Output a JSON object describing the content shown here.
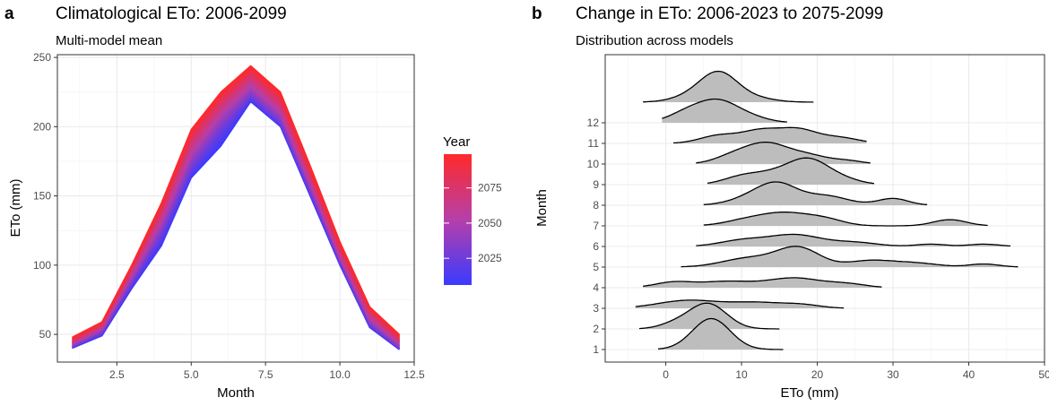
{
  "chart_data": [
    {
      "panel": "a",
      "type": "line",
      "title": "Climatological ETo: 2006-2099",
      "subtitle": "Multi-model mean",
      "xlabel": "Month",
      "ylabel": "ETo (mm)",
      "xlim": [
        0.5,
        12.5
      ],
      "ylim": [
        30,
        252
      ],
      "xticks": [
        2.5,
        5.0,
        7.5,
        10.0,
        12.5
      ],
      "xtick_labels": [
        "2.5",
        "5.0",
        "7.5",
        "10.0",
        "12.5"
      ],
      "yticks": [
        50,
        100,
        150,
        200,
        250
      ],
      "ytick_labels": [
        "50",
        "100",
        "150",
        "200",
        "250"
      ],
      "x": [
        1,
        2,
        3,
        4,
        5,
        6,
        7,
        8,
        9,
        10,
        11,
        12
      ],
      "series": [
        {
          "name": "2006",
          "values": [
            40,
            49,
            83,
            114,
            163,
            186,
            218,
            200,
            150,
            100,
            55,
            39
          ]
        },
        {
          "name": "2025",
          "values": [
            41,
            51,
            87,
            122,
            170,
            198,
            222,
            203,
            153,
            102,
            57,
            40
          ]
        },
        {
          "name": "2050",
          "values": [
            43,
            54,
            92,
            131,
            180,
            208,
            229,
            210,
            159,
            106,
            61,
            43
          ]
        },
        {
          "name": "2075",
          "values": [
            45,
            57,
            97,
            139,
            190,
            217,
            237,
            217,
            165,
            111,
            66,
            46
          ]
        },
        {
          "name": "2099",
          "values": [
            48,
            59,
            100,
            145,
            198,
            225,
            244,
            225,
            172,
            117,
            70,
            50
          ]
        }
      ],
      "legend": {
        "title": "Year",
        "labels": [
          "2075",
          "2050",
          "2025"
        ],
        "low_color": "#3b3bff",
        "mid_color": "#b63fa9",
        "high_color": "#ff2a2a",
        "year_range": [
          2006,
          2099
        ]
      }
    },
    {
      "panel": "b",
      "type": "ridgeline",
      "title": "Change in ETo: 2006-2023 to 2075-2099",
      "subtitle": "Distribution across models",
      "xlabel": "ETo (mm)",
      "ylabel": "Month",
      "xlim": [
        -8,
        50
      ],
      "xticks": [
        0,
        10,
        20,
        30,
        40,
        50
      ],
      "xtick_labels": [
        "0",
        "10",
        "20",
        "30",
        "40",
        "50"
      ],
      "categories": [
        "1",
        "2",
        "3",
        "4",
        "5",
        "6",
        "7",
        "8",
        "9",
        "10",
        "11",
        "12"
      ],
      "fill_color": "#bdbdbd",
      "ridges": [
        {
          "month": "1",
          "range": [
            -1,
            15.5
          ],
          "components": [
            [
              6,
              2.5,
              1.0
            ]
          ]
        },
        {
          "month": "2",
          "range": [
            -3.5,
            15
          ],
          "components": [
            [
              5.5,
              2.5,
              0.9
            ],
            [
              1,
              2,
              0.15
            ]
          ]
        },
        {
          "month": "3",
          "range": [
            -4,
            23.5
          ],
          "components": [
            [
              3,
              4,
              0.5
            ],
            [
              12,
              3.5,
              0.35
            ],
            [
              18,
              2.5,
              0.2
            ]
          ]
        },
        {
          "month": "4",
          "range": [
            -3,
            28.5
          ],
          "components": [
            [
              1,
              2.5,
              0.3
            ],
            [
              8,
              3.5,
              0.35
            ],
            [
              17,
              3.5,
              0.55
            ],
            [
              24,
              2.5,
              0.2
            ]
          ]
        },
        {
          "month": "5",
          "range": [
            2,
            46.5
          ],
          "components": [
            [
              11,
              3.5,
              0.35
            ],
            [
              17.5,
              2.8,
              0.75
            ],
            [
              27,
              3,
              0.25
            ],
            [
              33,
              3,
              0.15
            ],
            [
              42,
              2,
              0.12
            ]
          ]
        },
        {
          "month": "6",
          "range": [
            4,
            45.5
          ],
          "components": [
            [
              10,
              3,
              0.3
            ],
            [
              17,
              3.5,
              0.6
            ],
            [
              25,
              3,
              0.2
            ],
            [
              35,
              2,
              0.12
            ],
            [
              42,
              2,
              0.12
            ]
          ]
        },
        {
          "month": "7",
          "range": [
            5,
            42.5
          ],
          "components": [
            [
              11,
              3,
              0.3
            ],
            [
              16,
              3,
              0.55
            ],
            [
              21,
              2.5,
              0.3
            ],
            [
              37.5,
              2.2,
              0.3
            ]
          ]
        },
        {
          "month": "8",
          "range": [
            5,
            34.5
          ],
          "components": [
            [
              12,
              3,
              0.35
            ],
            [
              15,
              2.5,
              0.6
            ],
            [
              21,
              3,
              0.35
            ],
            [
              30,
              2,
              0.25
            ]
          ]
        },
        {
          "month": "9",
          "range": [
            5.5,
            27.5
          ],
          "components": [
            [
              10,
              2.5,
              0.25
            ],
            [
              15,
              3,
              0.4
            ],
            [
              19,
              2.5,
              0.7
            ],
            [
              23,
              2.5,
              0.2
            ]
          ]
        },
        {
          "month": "10",
          "range": [
            4,
            27
          ],
          "components": [
            [
              9,
              2.5,
              0.3
            ],
            [
              13.5,
              2.8,
              0.75
            ],
            [
              19,
              2.5,
              0.3
            ],
            [
              24,
              2,
              0.12
            ]
          ]
        },
        {
          "month": "11",
          "range": [
            1,
            26.5
          ],
          "components": [
            [
              7,
              2.5,
              0.35
            ],
            [
              12.5,
              2.5,
              0.55
            ],
            [
              17.5,
              2.5,
              0.6
            ],
            [
              23,
              2.5,
              0.25
            ]
          ]
        },
        {
          "month": "12",
          "range": [
            -0.5,
            16
          ],
          "components": [
            [
              3,
              2.5,
              0.4
            ],
            [
              7,
              2.5,
              0.7
            ],
            [
              11,
              2.5,
              0.2
            ]
          ]
        },
        {
          "month": "top",
          "range": [
            -3,
            19.5
          ],
          "components": [
            [
              7,
              2.5,
              1.0
            ],
            [
              3,
              2.5,
              0.15
            ],
            [
              12,
              2.5,
              0.12
            ]
          ]
        }
      ]
    }
  ],
  "labels": {
    "panel_a_letter": "a",
    "panel_b_letter": "b"
  }
}
